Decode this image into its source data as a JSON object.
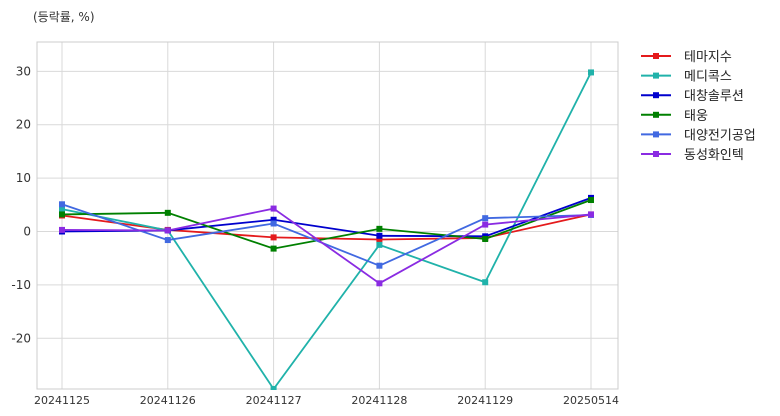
{
  "chart_data": {
    "type": "line",
    "title": "",
    "unit_label": "(등락률, %)",
    "xlabel": "",
    "ylabel": "",
    "categories": [
      "20241125",
      "20241126",
      "20241127",
      "20241128",
      "20241129",
      "20250514"
    ],
    "ylim": [
      -29.5,
      35.5
    ],
    "yticks": [
      -20,
      -10,
      0,
      10,
      20,
      30
    ],
    "grid": true,
    "legend_position": "right",
    "series": [
      {
        "name": "테마지수",
        "color": "#e41a1c",
        "values": [
          3.0,
          0.3,
          -1.1,
          -1.5,
          -1.2,
          3.2
        ]
      },
      {
        "name": "메디콕스",
        "color": "#20b2aa",
        "values": [
          4.2,
          0.2,
          -29.5,
          -2.5,
          -9.5,
          29.8
        ]
      },
      {
        "name": "대창솔루션",
        "color": "#0000cd",
        "values": [
          0.0,
          0.2,
          2.2,
          -0.8,
          -0.9,
          6.3
        ]
      },
      {
        "name": "태웅",
        "color": "#008000",
        "values": [
          3.2,
          3.5,
          -3.2,
          0.5,
          -1.4,
          5.9
        ]
      },
      {
        "name": "대양전기공업",
        "color": "#4169e1",
        "values": [
          5.1,
          -1.6,
          1.5,
          -6.4,
          2.5,
          3.1
        ]
      },
      {
        "name": "동성화인텍",
        "color": "#8a2be2",
        "values": [
          0.3,
          0.2,
          4.3,
          -9.7,
          1.3,
          3.2
        ]
      }
    ]
  }
}
